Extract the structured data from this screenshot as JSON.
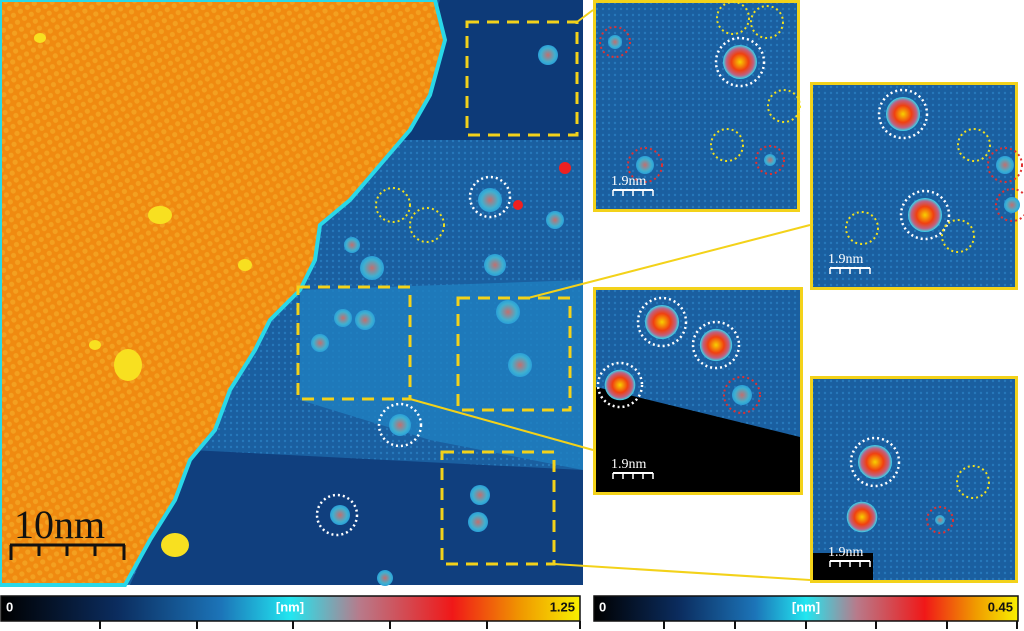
{
  "main_image": {
    "scale_bar": "10nm"
  },
  "insets": [
    {
      "scale_bar": "1.9nm"
    },
    {
      "scale_bar": "1.9nm"
    },
    {
      "scale_bar": "1.9nm"
    },
    {
      "scale_bar": "1.9nm"
    }
  ],
  "colorbars": [
    {
      "min": 0,
      "unit": "[nm]",
      "max": 1.25
    },
    {
      "min": 0,
      "unit": "[nm]",
      "max": 0.45
    }
  ]
}
